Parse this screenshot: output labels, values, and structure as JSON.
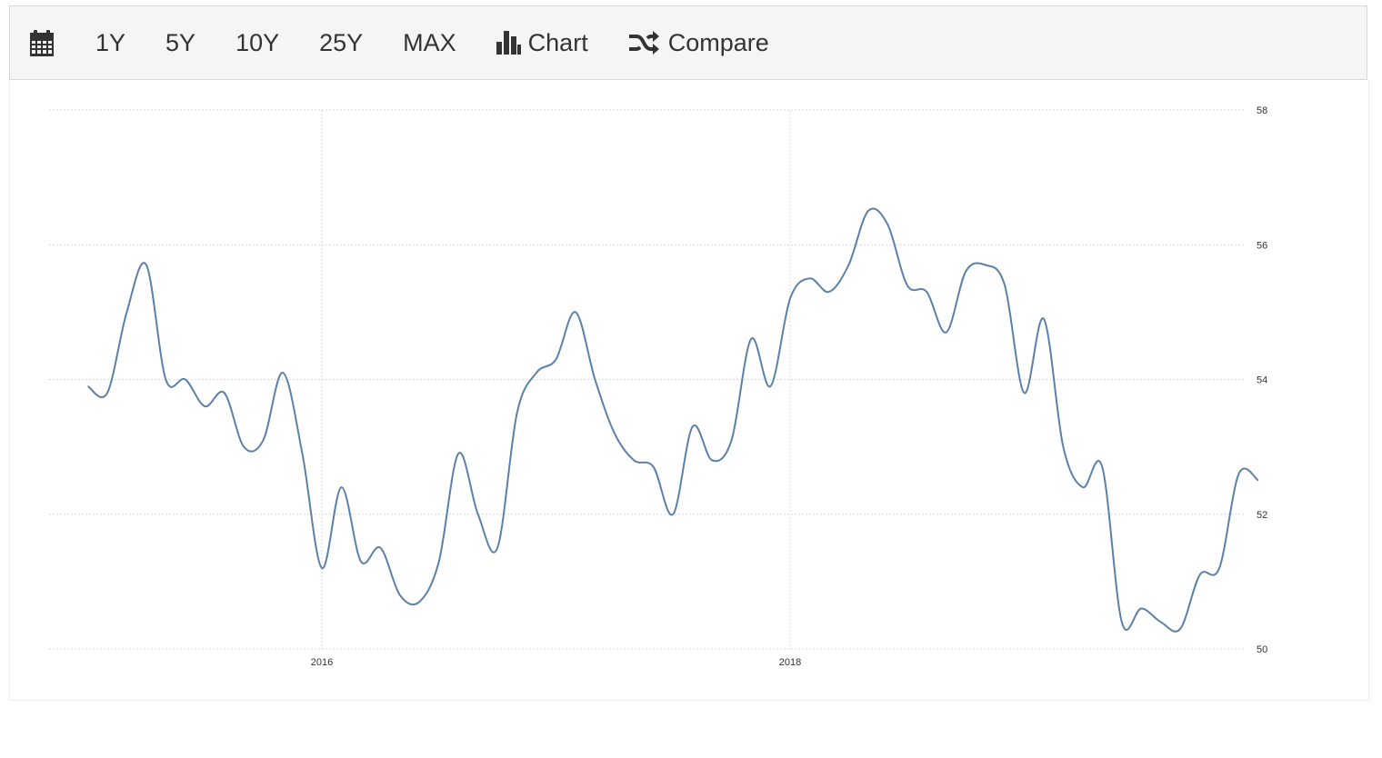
{
  "toolbar": {
    "calendar_icon": "calendar-icon",
    "ranges": [
      "1Y",
      "5Y",
      "10Y",
      "25Y",
      "MAX"
    ],
    "chart_label": "Chart",
    "chart_icon": "bar-chart-icon",
    "compare_label": "Compare",
    "compare_icon": "shuffle-icon"
  },
  "colors": {
    "line": "#5b81a9",
    "grid": "#d9d9d9",
    "toolbar_bg": "#f5f5f5"
  },
  "chart_data": {
    "type": "line",
    "title": "",
    "xlabel": "",
    "ylabel": "",
    "ylim": [
      50,
      58
    ],
    "y_ticks": [
      "58",
      "56",
      "54",
      "52",
      "50"
    ],
    "x_ticks": [
      "2016",
      "2018"
    ],
    "y_axis_position": "right",
    "grid": true,
    "series": [
      {
        "x": [
          "2015-01",
          "2015-02",
          "2015-03",
          "2015-04",
          "2015-05",
          "2015-06",
          "2015-07",
          "2015-08",
          "2015-09",
          "2015-10",
          "2015-11",
          "2015-12",
          "2016-01",
          "2016-02",
          "2016-03",
          "2016-04",
          "2016-05",
          "2016-06",
          "2016-07",
          "2016-08",
          "2016-09",
          "2016-10",
          "2016-11",
          "2016-12",
          "2017-01",
          "2017-02",
          "2017-03",
          "2017-04",
          "2017-05",
          "2017-06",
          "2017-07",
          "2017-08",
          "2017-09",
          "2017-10",
          "2017-11",
          "2017-12",
          "2018-01",
          "2018-02",
          "2018-03",
          "2018-04",
          "2018-05",
          "2018-06",
          "2018-07",
          "2018-08",
          "2018-09",
          "2018-10",
          "2018-11",
          "2018-12",
          "2019-01",
          "2019-02",
          "2019-03",
          "2019-04",
          "2019-05",
          "2019-06",
          "2019-07",
          "2019-08",
          "2019-09",
          "2019-10",
          "2019-11",
          "2019-12",
          "2020-01"
        ],
        "values": [
          53.9,
          53.8,
          55.0,
          55.7,
          54.0,
          54.0,
          53.6,
          53.8,
          53.0,
          53.1,
          54.1,
          52.9,
          51.2,
          52.4,
          51.3,
          51.5,
          50.8,
          50.7,
          51.3,
          52.9,
          52.0,
          51.5,
          53.5,
          54.1,
          54.3,
          55.0,
          54.0,
          53.2,
          52.8,
          52.7,
          52.0,
          53.3,
          52.8,
          53.1,
          54.6,
          53.9,
          55.2,
          55.5,
          55.3,
          55.7,
          56.5,
          56.3,
          55.4,
          55.3,
          54.7,
          55.6,
          55.7,
          55.4,
          53.8,
          54.9,
          53.0,
          52.4,
          52.7,
          50.4,
          50.6,
          50.4,
          50.3,
          51.1,
          51.2,
          52.6,
          52.5
        ]
      }
    ]
  }
}
